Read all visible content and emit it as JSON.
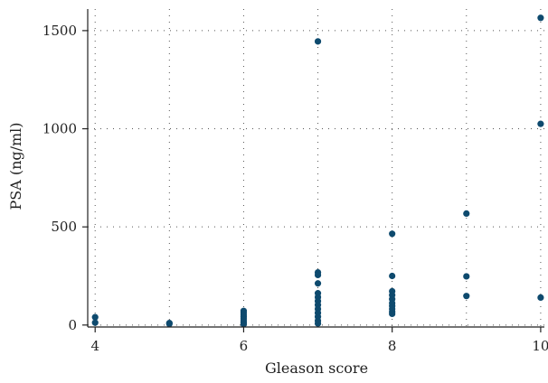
{
  "chart_data": {
    "type": "scatter",
    "xlabel": "Gleason score",
    "ylabel": "PSA (ng/ml)",
    "xlim": [
      3.9,
      10.05
    ],
    "ylim": [
      -10,
      1610
    ],
    "xticks": [
      4,
      6,
      8,
      10
    ],
    "yticks": [
      0,
      500,
      1000,
      1500
    ],
    "grid": true,
    "point_color": "#0e4a6e",
    "series": [
      {
        "points": [
          {
            "x": 4,
            "y": 40
          },
          {
            "x": 4,
            "y": 12
          },
          {
            "x": 5,
            "y": 10
          },
          {
            "x": 5,
            "y": 6
          },
          {
            "x": 6,
            "y": 72
          },
          {
            "x": 6,
            "y": 62
          },
          {
            "x": 6,
            "y": 52
          },
          {
            "x": 6,
            "y": 42
          },
          {
            "x": 6,
            "y": 32
          },
          {
            "x": 6,
            "y": 22
          },
          {
            "x": 6,
            "y": 12
          },
          {
            "x": 6,
            "y": 4
          },
          {
            "x": 7,
            "y": 1445
          },
          {
            "x": 7,
            "y": 268
          },
          {
            "x": 7,
            "y": 255
          },
          {
            "x": 7,
            "y": 212
          },
          {
            "x": 7,
            "y": 162
          },
          {
            "x": 7,
            "y": 142
          },
          {
            "x": 7,
            "y": 122
          },
          {
            "x": 7,
            "y": 102
          },
          {
            "x": 7,
            "y": 82
          },
          {
            "x": 7,
            "y": 62
          },
          {
            "x": 7,
            "y": 42
          },
          {
            "x": 7,
            "y": 22
          },
          {
            "x": 7,
            "y": 8
          },
          {
            "x": 8,
            "y": 465
          },
          {
            "x": 8,
            "y": 250
          },
          {
            "x": 8,
            "y": 172
          },
          {
            "x": 8,
            "y": 152
          },
          {
            "x": 8,
            "y": 132
          },
          {
            "x": 8,
            "y": 112
          },
          {
            "x": 8,
            "y": 97
          },
          {
            "x": 8,
            "y": 82
          },
          {
            "x": 8,
            "y": 67
          },
          {
            "x": 8,
            "y": 57
          },
          {
            "x": 9,
            "y": 568
          },
          {
            "x": 9,
            "y": 248
          },
          {
            "x": 9,
            "y": 148
          },
          {
            "x": 10,
            "y": 1565
          },
          {
            "x": 10,
            "y": 1025
          },
          {
            "x": 10,
            "y": 140
          }
        ]
      }
    ]
  }
}
